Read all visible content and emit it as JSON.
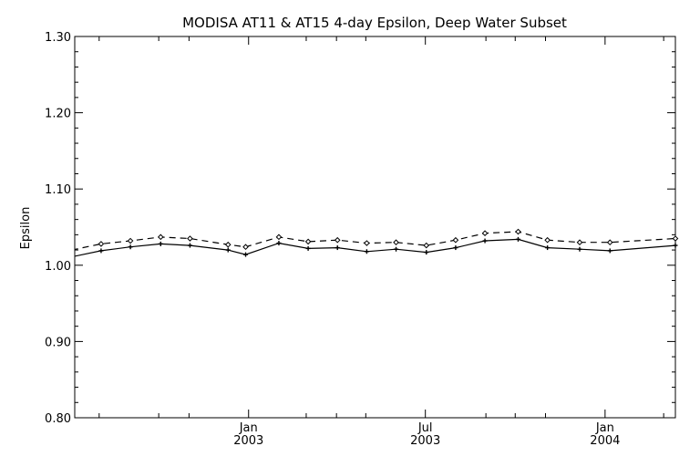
{
  "chart_data": {
    "type": "line",
    "title": "MODISA AT11 & AT15 4-day Epsilon, Deep Water Subset",
    "xlabel": "",
    "ylabel": "Epsilon",
    "ylim": [
      0.8,
      1.3
    ],
    "xlim": [
      "2002-07-07",
      "2004-03-13"
    ],
    "y_ticks": [
      "0.80",
      "0.90",
      "1.00",
      "1.10",
      "1.20",
      "1.30"
    ],
    "x_ticks": [
      {
        "date": "2003-01-01",
        "line1": "Jan",
        "line2": "2003"
      },
      {
        "date": "2003-07-01",
        "line1": "Jul",
        "line2": "2003"
      },
      {
        "date": "2004-01-01",
        "line1": "Jan",
        "line2": "2004"
      }
    ],
    "x_minor_ticks": [
      "2002-08-01",
      "2002-10-01",
      "2002-11-01",
      "2003-03-01",
      "2003-04-01",
      "2003-05-01",
      "2003-09-01",
      "2003-10-01",
      "2003-11-01",
      "2004-03-01"
    ],
    "grid": false,
    "series": [
      {
        "style": "solid",
        "marker": "plus",
        "x": [
          "2002-07-04",
          "2002-08-03",
          "2002-09-02",
          "2002-10-03",
          "2002-11-02",
          "2002-12-11",
          "2002-12-29",
          "2003-02-01",
          "2003-03-03",
          "2003-04-02",
          "2003-05-02",
          "2003-06-01",
          "2003-07-02",
          "2003-08-01",
          "2003-08-31",
          "2003-10-04",
          "2003-11-03",
          "2003-12-06",
          "2004-01-06",
          "2004-03-13"
        ],
        "y": [
          1.011,
          1.019,
          1.024,
          1.028,
          1.026,
          1.02,
          1.014,
          1.029,
          1.022,
          1.023,
          1.018,
          1.021,
          1.017,
          1.023,
          1.032,
          1.034,
          1.023,
          1.021,
          1.019,
          1.026
        ]
      },
      {
        "style": "dashed",
        "marker": "diamond",
        "x": [
          "2002-07-04",
          "2002-08-03",
          "2002-09-02",
          "2002-10-03",
          "2002-11-02",
          "2002-12-11",
          "2002-12-29",
          "2003-02-01",
          "2003-03-03",
          "2003-04-02",
          "2003-05-02",
          "2003-06-01",
          "2003-07-02",
          "2003-08-01",
          "2003-08-31",
          "2003-10-04",
          "2003-11-03",
          "2003-12-06",
          "2004-01-06",
          "2004-03-13"
        ],
        "y": [
          1.02,
          1.028,
          1.032,
          1.037,
          1.035,
          1.027,
          1.024,
          1.037,
          1.031,
          1.033,
          1.029,
          1.03,
          1.026,
          1.033,
          1.042,
          1.044,
          1.033,
          1.03,
          1.03,
          1.035
        ]
      }
    ]
  }
}
